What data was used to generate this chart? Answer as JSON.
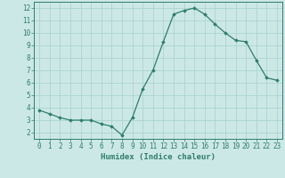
{
  "x": [
    0,
    1,
    2,
    3,
    4,
    5,
    6,
    7,
    8,
    9,
    10,
    11,
    12,
    13,
    14,
    15,
    16,
    17,
    18,
    19,
    20,
    21,
    22,
    23
  ],
  "y": [
    3.8,
    3.5,
    3.2,
    3.0,
    3.0,
    3.0,
    2.7,
    2.5,
    1.8,
    3.2,
    5.5,
    7.0,
    9.3,
    11.5,
    11.8,
    12.0,
    11.5,
    10.7,
    10.0,
    9.4,
    9.3,
    7.8,
    6.4,
    6.2
  ],
  "line_color": "#2e7d6e",
  "marker": "D",
  "marker_size": 1.8,
  "bg_color": "#cce8e6",
  "grid_color": "#aad4d0",
  "axis_color": "#2e7d6e",
  "xlabel": "Humidex (Indice chaleur)",
  "xlim": [
    -0.5,
    23.5
  ],
  "ylim": [
    1.5,
    12.5
  ],
  "yticks": [
    2,
    3,
    4,
    5,
    6,
    7,
    8,
    9,
    10,
    11,
    12
  ],
  "xticks": [
    0,
    1,
    2,
    3,
    4,
    5,
    6,
    7,
    8,
    9,
    10,
    11,
    12,
    13,
    14,
    15,
    16,
    17,
    18,
    19,
    20,
    21,
    22,
    23
  ],
  "xlabel_fontsize": 6.5,
  "tick_fontsize": 5.5,
  "linewidth": 0.9
}
